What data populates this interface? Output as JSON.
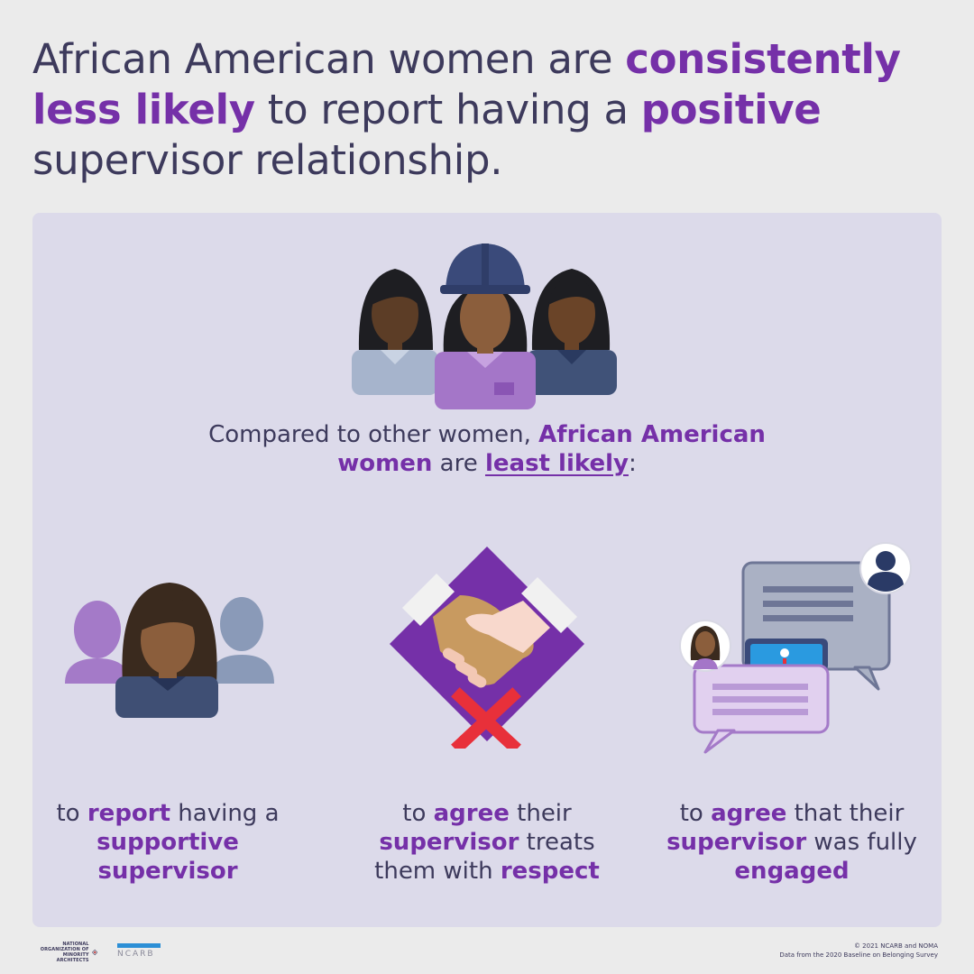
{
  "headline": {
    "p1": "African American women are ",
    "p2": "consistently less likely",
    "p3": " to report having a ",
    "p4": "positive",
    "p5": " supervisor relationship."
  },
  "intro": {
    "p1": "Compared to other women, ",
    "p2": "African American women",
    "p3": " are ",
    "p4": "least likely",
    "p5": ":"
  },
  "captions": [
    {
      "a": "to ",
      "b": "report",
      "c": " having a ",
      "d": "supportive supervisor",
      "e": ""
    },
    {
      "a": "to ",
      "b": "agree",
      "c": " their ",
      "d": "supervisor",
      "e": " treats them with ",
      "f": "respect"
    },
    {
      "a": "to ",
      "b": "agree",
      "c": " that their ",
      "d": "supervisor",
      "e": " was fully ",
      "f": "engaged"
    }
  ],
  "footer": {
    "copyright": "© 2021 NCARB and NOMA",
    "source": "Data from the 2020 Baseline on Belonging Survey",
    "noma_logo_text": "NATIONAL ORGANIZATION OF MINORITY ARCHITECTS",
    "ncarb_logo_text": "NCARB"
  },
  "colors": {
    "purple": "#7530a8",
    "text": "#3d3a5c",
    "panel": "#dcdaea",
    "background": "#ebebeb",
    "red_x": "#e8303a"
  },
  "icons": [
    "three-women-group-icon",
    "supportive-supervisor-icon",
    "handshake-no-respect-icon",
    "chat-engagement-icon"
  ]
}
